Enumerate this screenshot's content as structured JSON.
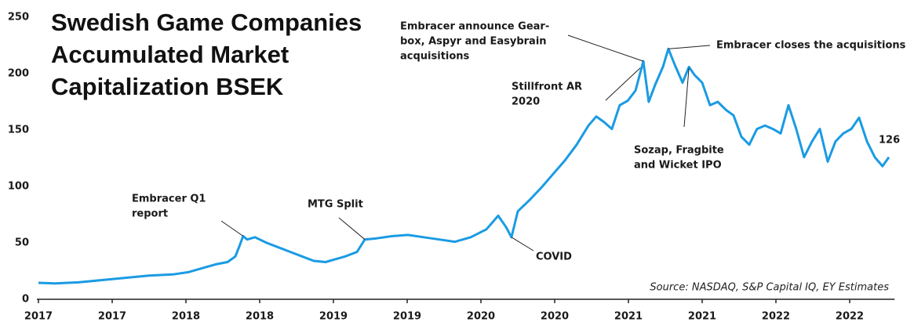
{
  "chart_data": {
    "type": "line",
    "title": [
      "Swedish Game Companies",
      "Accumulated Market",
      "Capitalization BSEK"
    ],
    "source": "Source: NASDAQ, S&P Capital IQ, EY Estimates",
    "xlim": [
      2017,
      2022.8
    ],
    "xticks": [
      {
        "value": 2017,
        "label": "2017"
      },
      {
        "value": 2017.5,
        "label": "2017"
      },
      {
        "value": 2018,
        "label": "2018"
      },
      {
        "value": 2018.5,
        "label": "2018"
      },
      {
        "value": 2019,
        "label": "2019"
      },
      {
        "value": 2019.5,
        "label": "2019"
      },
      {
        "value": 2020,
        "label": "2020"
      },
      {
        "value": 2020.5,
        "label": "2020"
      },
      {
        "value": 2021,
        "label": "2021"
      },
      {
        "value": 2021.5,
        "label": "2021"
      },
      {
        "value": 2022,
        "label": "2022"
      },
      {
        "value": 2022.5,
        "label": "2022"
      }
    ],
    "ylim": [
      0,
      250
    ],
    "yticks": [
      0,
      50,
      100,
      150,
      200,
      250
    ],
    "grid": false,
    "series": [
      {
        "color": "#1a9be3",
        "x": [
          2017.0,
          2017.112,
          2017.271,
          2017.431,
          2017.59,
          2017.75,
          2017.91,
          2018.016,
          2018.122,
          2018.202,
          2018.282,
          2018.335,
          2018.362,
          2018.388,
          2018.415,
          2018.468,
          2018.548,
          2018.628,
          2018.707,
          2018.787,
          2018.867,
          2018.947,
          2019.0,
          2019.08,
          2019.16,
          2019.213,
          2019.293,
          2019.399,
          2019.505,
          2019.612,
          2019.718,
          2019.824,
          2019.931,
          2020.037,
          2020.117,
          2020.17,
          2020.207,
          2020.25,
          2020.33,
          2020.41,
          2020.489,
          2020.569,
          2020.649,
          2020.729,
          2020.782,
          2020.835,
          2020.888,
          2020.941,
          2020.995,
          2021.048,
          2021.101,
          2021.138,
          2021.181,
          2021.234,
          2021.271,
          2021.314,
          2021.367,
          2021.41,
          2021.447,
          2021.5,
          2021.553,
          2021.606,
          2021.66,
          2021.713,
          2021.766,
          2021.819,
          2021.872,
          2021.926,
          2021.979,
          2022.032,
          2022.085,
          2022.138,
          2022.191,
          2022.245,
          2022.298,
          2022.351,
          2022.404,
          2022.457,
          2022.511,
          2022.564,
          2022.617,
          2022.67,
          2022.723,
          2022.766
        ],
        "values": [
          14.6,
          14,
          15,
          17,
          19,
          21,
          22,
          24,
          28,
          31,
          33,
          38,
          47,
          56,
          53,
          55,
          50,
          46,
          42,
          38,
          34,
          33,
          35,
          38,
          42,
          53,
          54,
          56,
          57,
          55,
          53,
          51,
          55,
          62,
          74,
          64,
          55,
          78,
          88,
          99,
          111,
          123,
          137,
          154,
          162,
          157,
          151,
          172,
          176,
          185,
          211,
          175,
          190,
          206,
          222,
          208,
          192,
          206,
          199,
          192,
          172,
          175,
          168,
          163,
          144,
          137,
          151,
          154,
          151,
          147,
          172,
          151,
          126,
          140,
          151,
          122,
          140,
          147,
          151,
          161,
          140,
          126,
          118,
          126
        ]
      }
    ],
    "annotations": [
      {
        "text": [
          "Embracer Q1",
          "report"
        ],
        "x": 2018.388,
        "y": 56
      },
      {
        "text": [
          "MTG Split"
        ],
        "x": 2019.213,
        "y": 53
      },
      {
        "text": [
          "COVID"
        ],
        "x": 2020.207,
        "y": 55
      },
      {
        "text": [
          "Stillfront AR",
          "2020"
        ],
        "x": 2021.08,
        "y": 205
      },
      {
        "text": [
          "Embracer announce Gear-",
          "box, Aspyr and Easybrain",
          "acquisitions"
        ],
        "x": 2021.101,
        "y": 211
      },
      {
        "text": [
          "Embracer closes the acquisitions"
        ],
        "x": 2021.271,
        "y": 222
      },
      {
        "text": [
          "Sozap, Fragbite",
          "and Wicket IPO"
        ],
        "x": 2021.41,
        "y": 205
      },
      {
        "text": [
          "126"
        ],
        "x": 2022.766,
        "y": 126
      }
    ]
  }
}
